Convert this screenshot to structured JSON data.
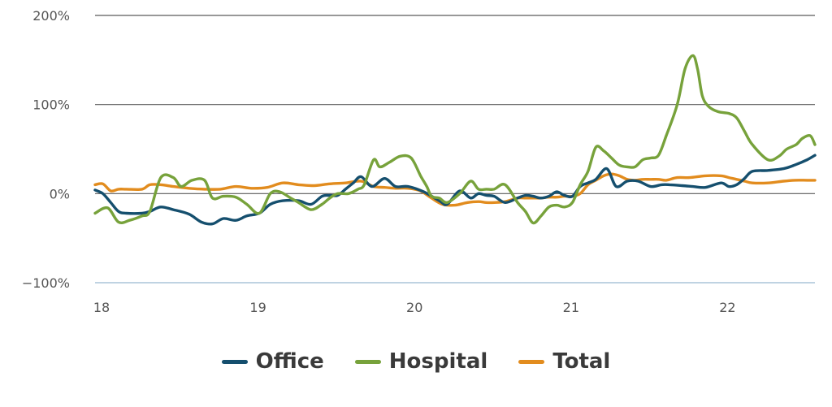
{
  "chart_data": {
    "type": "line",
    "y_tick_labels": [
      "200%",
      "100%",
      "0%",
      "−100%"
    ],
    "y_ticks": [
      200,
      100,
      0,
      -100
    ],
    "x_tick_labels": [
      "18",
      "19",
      "20",
      "21",
      "22"
    ],
    "x_ticks": [
      2018,
      2019,
      2020,
      2021,
      2022
    ],
    "xlim": [
      2018,
      2022.6
    ],
    "ylim": [
      -100,
      200
    ],
    "grid": "horizontal",
    "legend_position": "bottom",
    "series": [
      {
        "name": "Office",
        "color": "#154f6e",
        "x": [
          2018.0,
          2018.05,
          2018.1,
          2018.15,
          2018.2,
          2018.3,
          2018.35,
          2018.42,
          2018.5,
          2018.6,
          2018.68,
          2018.75,
          2018.82,
          2018.9,
          2018.97,
          2019.05,
          2019.12,
          2019.2,
          2019.3,
          2019.38,
          2019.45,
          2019.5,
          2019.55,
          2019.6,
          2019.65,
          2019.7,
          2019.77,
          2019.85,
          2019.92,
          2020.0,
          2020.1,
          2020.2,
          2020.25,
          2020.33,
          2020.4,
          2020.45,
          2020.5,
          2020.55,
          2020.62,
          2020.7,
          2020.75,
          2020.8,
          2020.85,
          2020.9,
          2020.95,
          2021.0,
          2021.05,
          2021.1,
          2021.15,
          2021.2,
          2021.27,
          2021.33,
          2021.4,
          2021.47,
          2021.55,
          2021.62,
          2021.67,
          2021.75,
          2021.82,
          2021.9,
          2022.0,
          2022.05,
          2022.1,
          2022.15,
          2022.2,
          2022.3,
          2022.4,
          2022.47,
          2022.55,
          2022.6
        ],
        "values": [
          4,
          0,
          -10,
          -20,
          -22,
          -22,
          -20,
          -15,
          -18,
          -23,
          -32,
          -34,
          -28,
          -30,
          -25,
          -22,
          -12,
          -8,
          -8,
          -12,
          -3,
          -2,
          -2,
          5,
          12,
          19,
          8,
          17,
          8,
          8,
          2,
          -8,
          -12,
          3,
          -5,
          0,
          -2,
          -3,
          -10,
          -5,
          -2,
          -3,
          -5,
          -3,
          2,
          -2,
          -3,
          8,
          12,
          16,
          28,
          8,
          14,
          14,
          8,
          10,
          10,
          9,
          8,
          7,
          12,
          8,
          10,
          17,
          25,
          26,
          28,
          32,
          38,
          43
        ]
      },
      {
        "name": "Hospital",
        "color": "#77a23b",
        "x": [
          2018.0,
          2018.08,
          2018.15,
          2018.22,
          2018.3,
          2018.35,
          2018.42,
          2018.5,
          2018.55,
          2018.62,
          2018.7,
          2018.75,
          2018.82,
          2018.9,
          2018.97,
          2019.05,
          2019.12,
          2019.18,
          2019.25,
          2019.3,
          2019.38,
          2019.45,
          2019.5,
          2019.55,
          2019.62,
          2019.68,
          2019.72,
          2019.78,
          2019.82,
          2019.88,
          2019.95,
          2020.02,
          2020.08,
          2020.12,
          2020.15,
          2020.2,
          2020.25,
          2020.33,
          2020.4,
          2020.45,
          2020.5,
          2020.55,
          2020.62,
          2020.7,
          2020.75,
          2020.8,
          2020.85,
          2020.9,
          2020.95,
          2021.0,
          2021.05,
          2021.1,
          2021.15,
          2021.2,
          2021.25,
          2021.3,
          2021.35,
          2021.4,
          2021.45,
          2021.5,
          2021.55,
          2021.6,
          2021.65,
          2021.72,
          2021.77,
          2021.82,
          2021.85,
          2021.88,
          2021.92,
          2021.98,
          2022.05,
          2022.1,
          2022.15,
          2022.2,
          2022.3,
          2022.37,
          2022.42,
          2022.48,
          2022.52,
          2022.57,
          2022.6
        ],
        "values": [
          -22,
          -16,
          -32,
          -30,
          -25,
          -20,
          18,
          18,
          8,
          15,
          15,
          -5,
          -3,
          -4,
          -12,
          -22,
          0,
          2,
          -5,
          -10,
          -18,
          -12,
          -5,
          0,
          0,
          5,
          10,
          38,
          30,
          35,
          42,
          40,
          20,
          8,
          -3,
          -5,
          -10,
          0,
          14,
          5,
          5,
          5,
          10,
          -10,
          -20,
          -33,
          -25,
          -15,
          -13,
          -15,
          -10,
          10,
          25,
          52,
          48,
          40,
          32,
          30,
          30,
          38,
          40,
          43,
          65,
          100,
          140,
          155,
          140,
          110,
          98,
          92,
          90,
          85,
          70,
          55,
          38,
          42,
          50,
          55,
          62,
          65,
          55
        ]
      },
      {
        "name": "Total",
        "color": "#e28c1e",
        "x": [
          2018.0,
          2018.05,
          2018.1,
          2018.15,
          2018.2,
          2018.3,
          2018.35,
          2018.42,
          2018.5,
          2018.6,
          2018.7,
          2018.8,
          2018.9,
          2019.0,
          2019.1,
          2019.2,
          2019.3,
          2019.4,
          2019.5,
          2019.6,
          2019.7,
          2019.78,
          2019.85,
          2019.92,
          2020.0,
          2020.08,
          2020.15,
          2020.22,
          2020.3,
          2020.38,
          2020.45,
          2020.5,
          2020.55,
          2020.62,
          2020.7,
          2020.75,
          2020.8,
          2020.85,
          2020.9,
          2020.95,
          2021.0,
          2021.05,
          2021.1,
          2021.15,
          2021.2,
          2021.25,
          2021.3,
          2021.35,
          2021.4,
          2021.45,
          2021.5,
          2021.55,
          2021.6,
          2021.65,
          2021.72,
          2021.8,
          2021.9,
          2022.0,
          2022.05,
          2022.1,
          2022.15,
          2022.2,
          2022.3,
          2022.4,
          2022.47,
          2022.55,
          2022.6
        ],
        "values": [
          10,
          11,
          3,
          5,
          5,
          5,
          10,
          10,
          8,
          6,
          5,
          5,
          8,
          6,
          7,
          12,
          10,
          9,
          11,
          12,
          14,
          8,
          7,
          6,
          6,
          3,
          -5,
          -12,
          -13,
          -10,
          -9,
          -10,
          -10,
          -9,
          -5,
          -5,
          -5,
          -5,
          -4,
          -4,
          -3,
          -3,
          0,
          10,
          15,
          20,
          22,
          20,
          16,
          15,
          16,
          16,
          16,
          15,
          18,
          18,
          20,
          20,
          18,
          16,
          14,
          12,
          12,
          14,
          15,
          15,
          15
        ]
      }
    ]
  }
}
